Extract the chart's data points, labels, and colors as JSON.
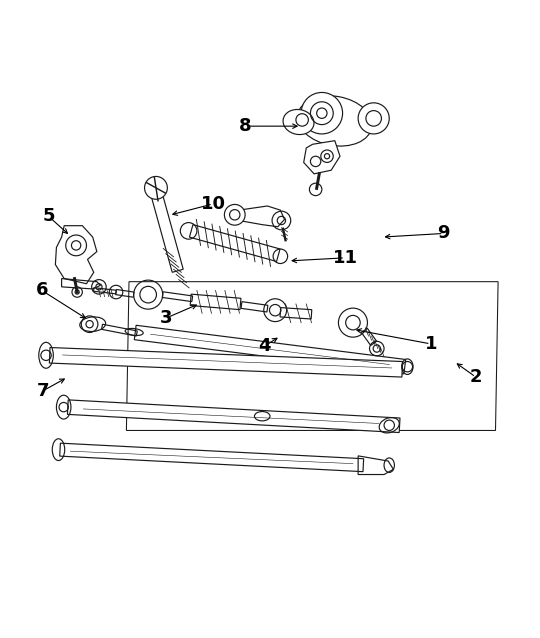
{
  "background_color": "#ffffff",
  "line_color": "#1a1a1a",
  "fig_width": 5.4,
  "fig_height": 6.38,
  "dpi": 100,
  "labels": {
    "8": [
      0.452,
      0.872,
      0.56,
      0.872,
      "right"
    ],
    "5": [
      0.073,
      0.698,
      0.115,
      0.66,
      "right"
    ],
    "10": [
      0.39,
      0.722,
      0.305,
      0.7,
      "right"
    ],
    "9": [
      0.835,
      0.665,
      0.715,
      0.658,
      "left"
    ],
    "11": [
      0.645,
      0.618,
      0.535,
      0.612,
      "left"
    ],
    "6": [
      0.06,
      0.555,
      0.15,
      0.498,
      "right"
    ],
    "3": [
      0.3,
      0.502,
      0.365,
      0.53,
      "right"
    ],
    "4": [
      0.49,
      0.448,
      0.52,
      0.467,
      "right"
    ],
    "1": [
      0.81,
      0.452,
      0.66,
      0.48,
      "left"
    ],
    "2": [
      0.897,
      0.388,
      0.855,
      0.418,
      "left"
    ],
    "7": [
      0.063,
      0.362,
      0.11,
      0.388,
      "right"
    ]
  }
}
